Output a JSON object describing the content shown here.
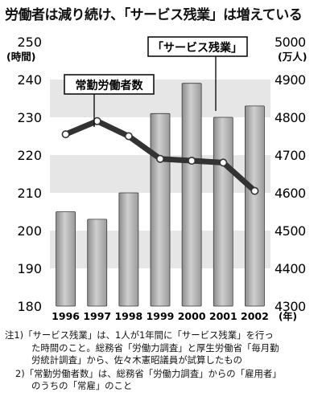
{
  "title": "労働者は減り続け、「サービス残業」は増えている",
  "chart_data": {
    "type": "bar",
    "categories": [
      "1996",
      "1997",
      "1998",
      "1999",
      "2000",
      "2001",
      "2002"
    ],
    "x_suffix": "(年)",
    "series": [
      {
        "name": "「サービス残業」",
        "type": "bar",
        "axis": "left",
        "values": [
          205,
          203,
          210,
          231,
          239,
          230,
          233
        ]
      },
      {
        "name": "常勤労働者数",
        "type": "line",
        "axis": "right",
        "values": [
          4755,
          4790,
          4750,
          4690,
          4685,
          4680,
          4605
        ]
      }
    ],
    "y_left": {
      "label": "(時間)",
      "ylim": [
        180,
        250
      ],
      "ticks": [
        180,
        190,
        200,
        210,
        220,
        230,
        240,
        250
      ]
    },
    "y_right": {
      "label": "(万人)",
      "ylim": [
        4300,
        5000
      ],
      "ticks": [
        4300,
        4400,
        4500,
        4600,
        4700,
        4800,
        4900,
        5000
      ]
    },
    "grid": "alternating horizontal bands"
  },
  "notes": {
    "note1_line1": "注1)「サービス残業」は、1人が1年間に「サービス残業」を行っ",
    "note1_line2": "た時間のこと。総務省「労働力調査」と厚生労働省「毎月勤",
    "note1_line3": "労統計調査」から、佐々木憲昭議員が試算したもの",
    "note2_line1": "2)「常勤労働者数」は、総務省「労働力調査」からの「雇用者」",
    "note2_line2": "のうちの「常雇」のこと"
  },
  "colors": {
    "bar_fill": "#b3b3b3",
    "bar_edge": "#3a3a3a",
    "band": "#e6e6e6",
    "line": "#333333",
    "marker_fill": "#ffffff"
  }
}
